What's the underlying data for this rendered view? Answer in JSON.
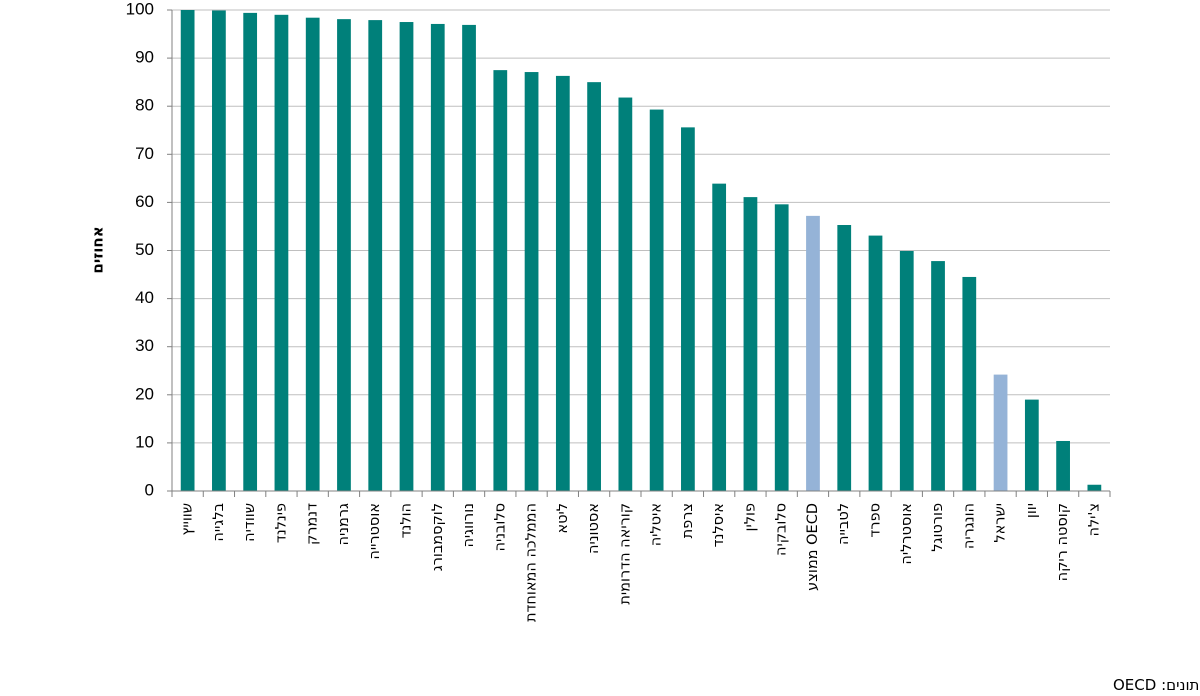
{
  "chart_data": {
    "type": "bar",
    "categories": [
      "שווייץ",
      "בלגייה",
      "שוודיה",
      "פינלנד",
      "דנמרק",
      "גרמניה",
      "אוסטרייה",
      "הולנד",
      "לוקסמבורג",
      "נורווגיה",
      "סלובניה",
      "הממלכה המאוחדת",
      "ליטא",
      "אסטוניה",
      "קוריאה הדרומית",
      "איטליה",
      "צרפת",
      "איסלנד",
      "פולין",
      "סלובקיה",
      "ממוצע OECD",
      "לטבייה",
      "ספרד",
      "אוסטרליה",
      "פורטוגל",
      "הונגריה",
      "ישראל",
      "יוון",
      "קוסטה ריקה",
      "צ'ילה"
    ],
    "values": [
      100,
      99.9,
      99.4,
      99.0,
      98.4,
      98.1,
      97.9,
      97.5,
      97.1,
      96.9,
      87.5,
      87.1,
      86.3,
      85.0,
      81.8,
      79.3,
      75.6,
      63.9,
      61.1,
      59.6,
      57.2,
      55.3,
      53.1,
      49.9,
      47.8,
      44.5,
      24.2,
      19.0,
      10.4,
      1.3
    ],
    "highlight": [
      "ממוצע OECD",
      "ישראל"
    ],
    "colors": {
      "default": "#00807a",
      "highlight": "#95b3d7"
    },
    "ylabel": "אחוזים",
    "ylim": [
      0,
      100
    ],
    "yticks": [
      "0",
      "10",
      "20",
      "30",
      "40",
      "50",
      "60",
      "70",
      "80",
      "90",
      "100"
    ],
    "grid": true
  },
  "source_note": "מקור הנתונים: OECD"
}
